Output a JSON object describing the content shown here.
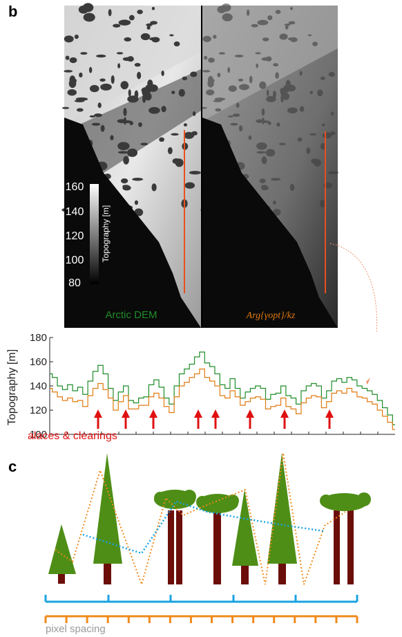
{
  "panel_b": {
    "label": "b",
    "colorbar": {
      "title": "Topography [m]",
      "ticks": [
        "160",
        "140",
        "120",
        "100",
        "80"
      ]
    },
    "left_map_label": "Arctic DEM",
    "right_map_label": "Arg{γopt}/kz",
    "colors": {
      "green": "#1e8c28",
      "orange": "#e07a10",
      "transect": "#e8501e",
      "arrow": "#e01010"
    }
  },
  "profile": {
    "ylabel": "Topography [m]",
    "yticks": [
      "180",
      "160",
      "140",
      "120",
      "100"
    ],
    "annotation": "alaces & clearings",
    "arrow_count": 8
  },
  "panel_c": {
    "label": "c",
    "legend_label": "pixel spacing",
    "colors": {
      "tree_green": "#4e8e16",
      "trunk": "#6b0e0a",
      "blue": "#1aa3e0",
      "orange": "#f08a1c",
      "grey_text": "#9a9a9a"
    }
  },
  "chart_data": {
    "type": "line",
    "title": "",
    "xlabel": "",
    "ylabel": "Topography [m]",
    "ylim": [
      100,
      180
    ],
    "series": [
      {
        "name": "Arctic DEM",
        "values": [
          150,
          147,
          140,
          137,
          141,
          136,
          139,
          133,
          144,
          152,
          157,
          150,
          138,
          128,
          135,
          140,
          128,
          126,
          130,
          131,
          141,
          145,
          139,
          130,
          125,
          140,
          150,
          154,
          158,
          164,
          168,
          159,
          156,
          150,
          141,
          138,
          146,
          138,
          130,
          135,
          138,
          140,
          138,
          129,
          133,
          134,
          140,
          132,
          130,
          125,
          136,
          140,
          142,
          140,
          130,
          136,
          144,
          146,
          143,
          147,
          145,
          140,
          138,
          136,
          133,
          128,
          122,
          116,
          108
        ]
      },
      {
        "name": "Arg{γopt}/kz",
        "values": [
          138,
          135,
          131,
          128,
          130,
          127,
          128,
          123,
          132,
          138,
          142,
          137,
          130,
          120,
          127,
          132,
          121,
          121,
          124,
          124,
          131,
          134,
          130,
          123,
          118,
          131,
          140,
          143,
          147,
          150,
          154,
          147,
          144,
          140,
          132,
          130,
          136,
          131,
          124,
          127,
          130,
          131,
          129,
          121,
          123,
          124,
          130,
          123,
          121,
          117,
          126,
          130,
          132,
          131,
          122,
          127,
          134,
          136,
          134,
          138,
          135,
          131,
          130,
          127,
          125,
          120,
          115,
          110,
          104
        ]
      }
    ],
    "arrow_positions": [
      0.14,
      0.22,
      0.3,
      0.43,
      0.48,
      0.58,
      0.68,
      0.81
    ]
  }
}
